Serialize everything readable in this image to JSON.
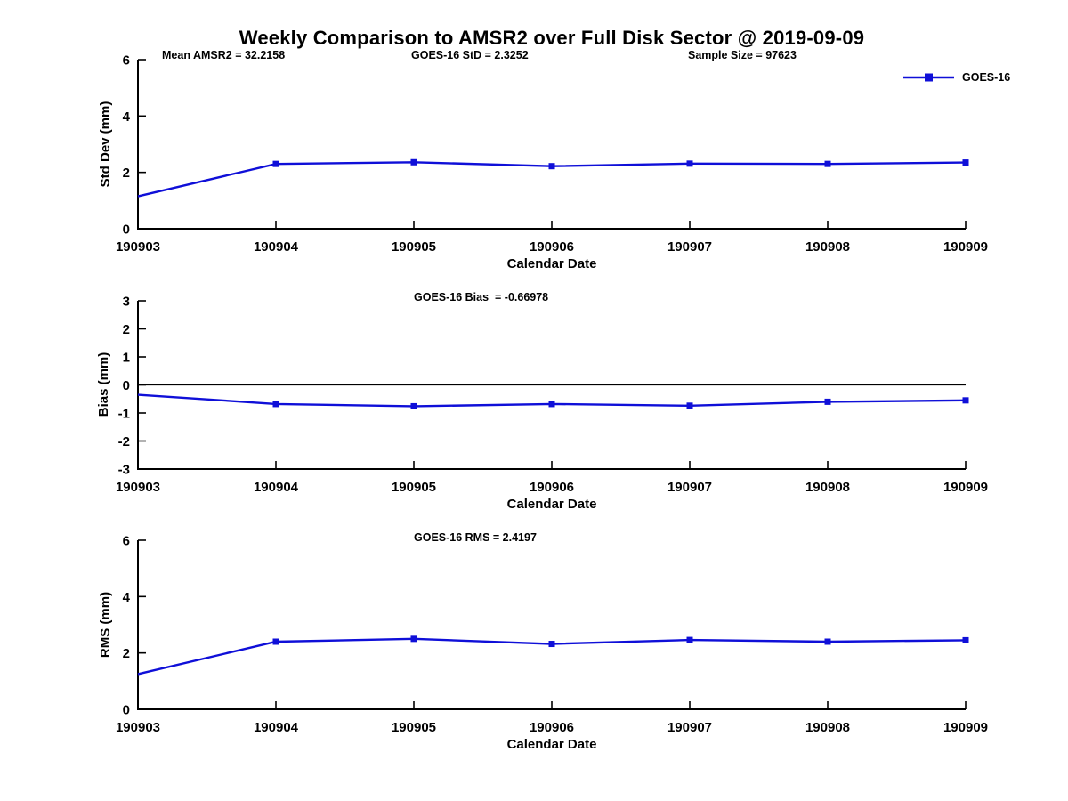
{
  "title": "Weekly Comparison to AMSR2 over Full Disk Sector @ 2019-09-09",
  "legend": {
    "label": "GOES-16"
  },
  "colors": {
    "line": "#0f0fd8",
    "axis": "#000000"
  },
  "chart_data": [
    {
      "id": "stddev",
      "type": "line",
      "ylabel": "Std Dev (mm)",
      "xlabel": "Calendar Date",
      "ylim": [
        0,
        6
      ],
      "yticks": [
        0,
        2,
        4,
        6
      ],
      "categories": [
        "190903",
        "190904",
        "190905",
        "190906",
        "190907",
        "190908",
        "190909"
      ],
      "series": [
        {
          "name": "GOES-16",
          "values": [
            1.15,
            2.3,
            2.36,
            2.22,
            2.31,
            2.3,
            2.35
          ]
        }
      ],
      "annotations": [
        "Mean AMSR2 = 32.2158",
        "GOES-16 StD = 2.3252",
        "Sample Size = 97623"
      ],
      "zero_line": false,
      "legend_position": "top-right",
      "grid": false
    },
    {
      "id": "bias",
      "type": "line",
      "ylabel": "Bias (mm)",
      "xlabel": "Calendar Date",
      "ylim": [
        -3,
        3
      ],
      "yticks": [
        -3,
        -2,
        -1,
        0,
        1,
        2,
        3
      ],
      "categories": [
        "190903",
        "190904",
        "190905",
        "190906",
        "190907",
        "190908",
        "190909"
      ],
      "series": [
        {
          "name": "GOES-16",
          "values": [
            -0.35,
            -0.68,
            -0.76,
            -0.68,
            -0.74,
            -0.6,
            -0.55
          ]
        }
      ],
      "annotations": [
        "GOES-16 Bias  = -0.66978"
      ],
      "zero_line": true,
      "grid": false
    },
    {
      "id": "rms",
      "type": "line",
      "ylabel": "RMS (mm)",
      "xlabel": "Calendar Date",
      "ylim": [
        0,
        6
      ],
      "yticks": [
        0,
        2,
        4,
        6
      ],
      "categories": [
        "190903",
        "190904",
        "190905",
        "190906",
        "190907",
        "190908",
        "190909"
      ],
      "series": [
        {
          "name": "GOES-16",
          "values": [
            1.25,
            2.4,
            2.5,
            2.32,
            2.46,
            2.4,
            2.45
          ]
        }
      ],
      "annotations": [
        "GOES-16 RMS = 2.4197"
      ],
      "zero_line": false,
      "grid": false
    }
  ]
}
